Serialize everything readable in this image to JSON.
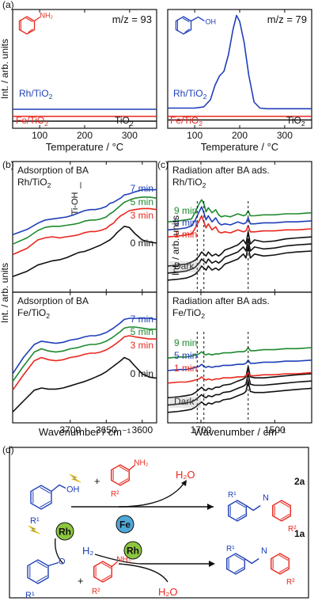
{
  "panel_labels": {
    "a": "(a)",
    "b": "(b)",
    "c": "(c)",
    "d": "(d)"
  },
  "colors": {
    "red": "#e8281e",
    "blue": "#1f3fb8",
    "green": "#1e8a2e",
    "black": "#111111",
    "gray": "#9a9a9a"
  },
  "chart_data": [
    {
      "type": "line",
      "panel": "a-left",
      "annotation": "m/z = 93",
      "xlabel": "Temperature / °C",
      "ylabel": "Int. / arb. units",
      "xlim": [
        40,
        360
      ],
      "xticks": [
        100,
        200,
        300
      ],
      "series": [
        {
          "name": "Rh/TiO2",
          "color": "#1f3fb8",
          "x": [
            40,
            360
          ],
          "y": [
            0.16,
            0.16
          ]
        },
        {
          "name": "Fe/TiO2",
          "color": "#e8281e",
          "x": [
            40,
            360
          ],
          "y": [
            0.1,
            0.1
          ]
        },
        {
          "name": "TiO2",
          "color": "#111111",
          "x": [
            40,
            360
          ],
          "y": [
            0.06,
            0.06
          ]
        }
      ]
    },
    {
      "type": "line",
      "panel": "a-right",
      "annotation": "m/z = 79",
      "xlabel": "Temperature / °C",
      "xlim": [
        40,
        360
      ],
      "xticks": [
        100,
        200,
        300
      ],
      "series": [
        {
          "name": "Rh/TiO2",
          "color": "#1f3fb8",
          "x": [
            40,
            100,
            120,
            135,
            145,
            155,
            165,
            175,
            185,
            193,
            200,
            210,
            220,
            232,
            245,
            260,
            300,
            360
          ],
          "y": [
            0.17,
            0.17,
            0.18,
            0.24,
            0.36,
            0.44,
            0.48,
            0.62,
            0.83,
            0.95,
            0.9,
            0.72,
            0.45,
            0.22,
            0.17,
            0.165,
            0.165,
            0.165
          ]
        },
        {
          "name": "Fe/TiO2",
          "color": "#e8281e",
          "x": [
            40,
            360
          ],
          "y": [
            0.1,
            0.1
          ]
        },
        {
          "name": "TiO2",
          "color": "#111111",
          "x": [
            40,
            360
          ],
          "y": [
            0.07,
            0.07
          ]
        }
      ]
    },
    {
      "type": "line",
      "panel": "b-top",
      "title": "Adsorption of BA",
      "subtitle": "Rh/TiO2",
      "annotation": "Ti-OH",
      "xlabel": "Wavenumber / cm⁻¹",
      "ylabel": "Int. / arb. units",
      "xlim": [
        3780,
        3580
      ],
      "xticks": [
        3700,
        3650,
        3600
      ],
      "x": [
        3780,
        3760,
        3745,
        3735,
        3725,
        3715,
        3705,
        3695,
        3688,
        3680,
        3672,
        3665,
        3658,
        3650,
        3645,
        3640,
        3635,
        3630,
        3625,
        3618,
        3610,
        3600,
        3590,
        3580
      ],
      "series": [
        {
          "name": "7 min",
          "color": "#1f3fb8",
          "y": [
            0.55,
            0.6,
            0.66,
            0.69,
            0.7,
            0.71,
            0.72,
            0.74,
            0.76,
            0.78,
            0.79,
            0.79,
            0.8,
            0.82,
            0.85,
            0.86,
            0.88,
            0.9,
            0.93,
            0.94,
            0.96,
            0.98,
            0.98,
            0.98
          ]
        },
        {
          "name": "5 min",
          "color": "#1e8a2e",
          "y": [
            0.46,
            0.52,
            0.59,
            0.62,
            0.63,
            0.63,
            0.64,
            0.65,
            0.66,
            0.68,
            0.69,
            0.69,
            0.7,
            0.72,
            0.75,
            0.77,
            0.8,
            0.83,
            0.86,
            0.88,
            0.9,
            0.91,
            0.91,
            0.9
          ]
        },
        {
          "name": "3 min",
          "color": "#e8281e",
          "y": [
            0.36,
            0.42,
            0.5,
            0.52,
            0.53,
            0.52,
            0.53,
            0.54,
            0.55,
            0.57,
            0.58,
            0.58,
            0.59,
            0.61,
            0.64,
            0.66,
            0.7,
            0.73,
            0.75,
            0.78,
            0.79,
            0.8,
            0.8,
            0.79
          ]
        },
        {
          "name": "0 min",
          "color": "#111111",
          "y": [
            0.15,
            0.2,
            0.26,
            0.28,
            0.3,
            0.31,
            0.33,
            0.36,
            0.38,
            0.39,
            0.41,
            0.43,
            0.45,
            0.48,
            0.5,
            0.53,
            0.57,
            0.6,
            0.63,
            0.62,
            0.56,
            0.5,
            0.48,
            0.47
          ]
        }
      ]
    },
    {
      "type": "line",
      "panel": "b-bottom",
      "title": "Adsorption of BA",
      "subtitle": "Fe/TiO2",
      "xlabel": "Wavenumber / cm⁻¹",
      "xlim": [
        3780,
        3580
      ],
      "xticks": [
        3700,
        3650,
        3600
      ],
      "x": [
        3780,
        3765,
        3750,
        3740,
        3730,
        3720,
        3710,
        3700,
        3690,
        3680,
        3672,
        3665,
        3658,
        3650,
        3640,
        3630,
        3625,
        3618,
        3610,
        3600,
        3590,
        3580
      ],
      "series": [
        {
          "name": "7 min",
          "color": "#1f3fb8",
          "y": [
            0.45,
            0.6,
            0.72,
            0.75,
            0.74,
            0.73,
            0.74,
            0.76,
            0.77,
            0.79,
            0.8,
            0.8,
            0.81,
            0.83,
            0.87,
            0.92,
            0.95,
            0.96,
            0.96,
            0.96,
            0.96,
            0.95
          ]
        },
        {
          "name": "5 min",
          "color": "#1e8a2e",
          "y": [
            0.38,
            0.52,
            0.65,
            0.68,
            0.66,
            0.65,
            0.66,
            0.68,
            0.69,
            0.71,
            0.72,
            0.72,
            0.73,
            0.75,
            0.79,
            0.84,
            0.87,
            0.88,
            0.88,
            0.87,
            0.86,
            0.86
          ]
        },
        {
          "name": "3 min",
          "color": "#e8281e",
          "y": [
            0.3,
            0.44,
            0.57,
            0.6,
            0.58,
            0.57,
            0.58,
            0.6,
            0.61,
            0.63,
            0.64,
            0.64,
            0.65,
            0.67,
            0.71,
            0.76,
            0.79,
            0.8,
            0.79,
            0.78,
            0.77,
            0.77
          ]
        },
        {
          "name": "0 min",
          "color": "#111111",
          "y": [
            0.1,
            0.2,
            0.3,
            0.32,
            0.31,
            0.31,
            0.32,
            0.34,
            0.36,
            0.38,
            0.4,
            0.42,
            0.44,
            0.47,
            0.52,
            0.57,
            0.6,
            0.58,
            0.52,
            0.45,
            0.42,
            0.41
          ]
        }
      ]
    },
    {
      "type": "line",
      "panel": "c-top",
      "title": "Radiation after BA ads.",
      "subtitle": "Rh/TiO2",
      "ylabel": "Int. / arb. units",
      "xlabel": "Wavenumber / cm⁻¹",
      "xlim": [
        1790,
        1400
      ],
      "xticks": [
        1700,
        1500
      ],
      "dashed_lines": [
        1710,
        1692,
        1572
      ],
      "x": [
        1790,
        1760,
        1740,
        1725,
        1715,
        1705,
        1698,
        1692,
        1686,
        1680,
        1670,
        1660,
        1652,
        1645,
        1635,
        1620,
        1600,
        1585,
        1578,
        1572,
        1566,
        1555,
        1530,
        1500,
        1470,
        1440,
        1400
      ],
      "series": [
        {
          "name": "9 min",
          "color": "#1e8a2e",
          "y": [
            0.7,
            0.71,
            0.72,
            0.73,
            0.8,
            0.88,
            0.92,
            0.88,
            0.8,
            0.84,
            0.79,
            0.82,
            0.77,
            0.75,
            0.76,
            0.75,
            0.78,
            0.76,
            0.77,
            0.81,
            0.76,
            0.76,
            0.77,
            0.77,
            0.78,
            0.78,
            0.79
          ]
        },
        {
          "name": "5 min",
          "color": "#1f3fb8",
          "y": [
            0.62,
            0.63,
            0.64,
            0.66,
            0.72,
            0.8,
            0.85,
            0.79,
            0.72,
            0.76,
            0.7,
            0.74,
            0.69,
            0.67,
            0.68,
            0.67,
            0.7,
            0.68,
            0.69,
            0.74,
            0.68,
            0.68,
            0.69,
            0.69,
            0.7,
            0.7,
            0.71
          ]
        },
        {
          "name": "1 min",
          "color": "#e8281e",
          "y": [
            0.55,
            0.56,
            0.57,
            0.58,
            0.64,
            0.71,
            0.76,
            0.7,
            0.64,
            0.68,
            0.62,
            0.65,
            0.6,
            0.59,
            0.6,
            0.59,
            0.62,
            0.6,
            0.61,
            0.66,
            0.6,
            0.6,
            0.61,
            0.61,
            0.62,
            0.62,
            0.63
          ]
        },
        {
          "name": "Dark",
          "color": "#111111",
          "y": [
            0.12,
            0.13,
            0.14,
            0.16,
            0.18,
            0.22,
            0.26,
            0.24,
            0.22,
            0.26,
            0.22,
            0.24,
            0.22,
            0.24,
            0.28,
            0.3,
            0.33,
            0.38,
            0.34,
            0.46,
            0.34,
            0.38,
            0.36,
            0.37,
            0.39,
            0.4,
            0.41
          ]
        }
      ]
    },
    {
      "type": "line",
      "panel": "c-bottom",
      "title": "Radiation after BA ads.",
      "subtitle": "Fe/TiO2",
      "xlabel": "Wavenumber / cm⁻¹",
      "xlim": [
        1790,
        1400
      ],
      "xticks": [
        1700,
        1500
      ],
      "dashed_lines": [
        1710,
        1692,
        1572
      ],
      "x": [
        1790,
        1760,
        1740,
        1725,
        1715,
        1705,
        1698,
        1692,
        1686,
        1680,
        1670,
        1660,
        1650,
        1640,
        1620,
        1600,
        1585,
        1578,
        1572,
        1566,
        1555,
        1530,
        1500,
        1470,
        1440,
        1400
      ],
      "series": [
        {
          "name": "9 min",
          "color": "#1e8a2e",
          "y": [
            0.62,
            0.63,
            0.63,
            0.64,
            0.65,
            0.66,
            0.68,
            0.66,
            0.65,
            0.66,
            0.65,
            0.66,
            0.66,
            0.67,
            0.67,
            0.68,
            0.68,
            0.69,
            0.72,
            0.69,
            0.69,
            0.7,
            0.7,
            0.71,
            0.71,
            0.72
          ]
        },
        {
          "name": "5 min",
          "color": "#1f3fb8",
          "y": [
            0.5,
            0.51,
            0.51,
            0.52,
            0.53,
            0.54,
            0.56,
            0.54,
            0.53,
            0.54,
            0.53,
            0.54,
            0.54,
            0.55,
            0.55,
            0.56,
            0.56,
            0.57,
            0.6,
            0.57,
            0.57,
            0.58,
            0.58,
            0.59,
            0.59,
            0.6
          ]
        },
        {
          "name": "1 min",
          "color": "#e8281e",
          "y": [
            0.38,
            0.39,
            0.39,
            0.4,
            0.41,
            0.42,
            0.44,
            0.42,
            0.41,
            0.42,
            0.41,
            0.42,
            0.42,
            0.43,
            0.43,
            0.44,
            0.44,
            0.45,
            0.48,
            0.45,
            0.45,
            0.46,
            0.46,
            0.47,
            0.47,
            0.48
          ]
        },
        {
          "name": "Dark",
          "color": "#111111",
          "y": [
            0.1,
            0.11,
            0.12,
            0.13,
            0.15,
            0.18,
            0.2,
            0.18,
            0.17,
            0.19,
            0.18,
            0.2,
            0.2,
            0.22,
            0.23,
            0.26,
            0.28,
            0.3,
            0.4,
            0.3,
            0.29,
            0.29,
            0.3,
            0.31,
            0.32,
            0.33
          ]
        }
      ]
    }
  ],
  "scheme": {
    "oh_label": "OH",
    "nh2_label": "NH₂",
    "r1": "R¹",
    "r2": "R²",
    "plus": "+",
    "h2o": "H₂O",
    "h2": "H₂",
    "fe": "Fe",
    "rh": "Rh",
    "o_label": "O",
    "n_label": "N",
    "product_2a": "2a",
    "product_1a": "1a"
  }
}
